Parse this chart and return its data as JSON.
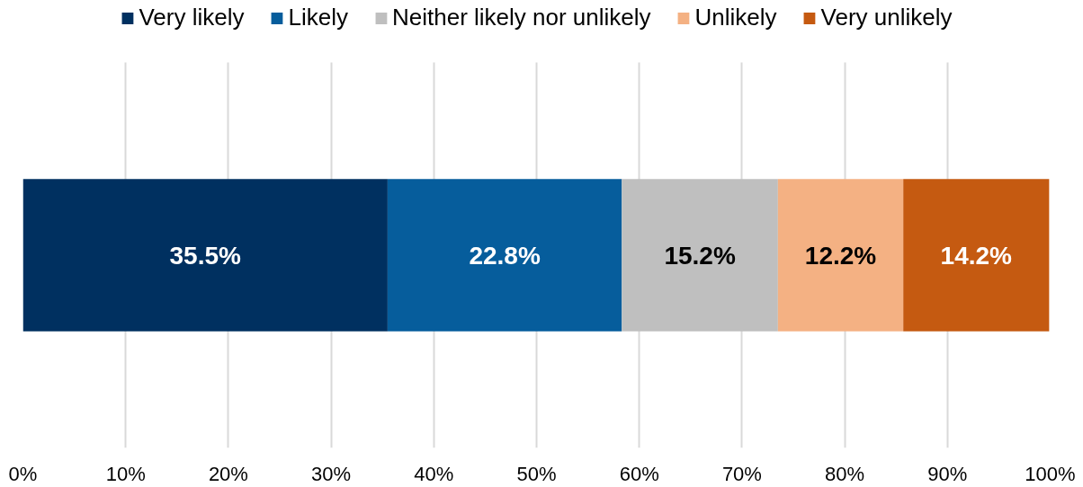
{
  "chart_data": {
    "type": "bar",
    "orientation": "horizontal",
    "stacked": true,
    "categories": [
      null
    ],
    "series": [
      {
        "name": "Very likely",
        "color": "#003060",
        "values": [
          35.5
        ],
        "value_labels": [
          "35.5%"
        ]
      },
      {
        "name": "Likely",
        "color": "#065d9c",
        "values": [
          22.8
        ],
        "value_labels": [
          "22.8%"
        ]
      },
      {
        "name": "Neither likely nor unlikely",
        "color": "#bfbfbf",
        "values": [
          15.2
        ],
        "value_labels": [
          "15.2%"
        ]
      },
      {
        "name": "Unlikely",
        "color": "#f4b183",
        "values": [
          12.2
        ],
        "value_labels": [
          "12.2%"
        ]
      },
      {
        "name": "Very unlikely",
        "color": "#c55a11",
        "values": [
          14.2
        ],
        "value_labels": [
          "14.2%"
        ]
      }
    ],
    "xlim": [
      0,
      100
    ],
    "xticks": [
      {
        "value": 0,
        "label": "0%"
      },
      {
        "value": 10,
        "label": "10%"
      },
      {
        "value": 20,
        "label": "20%"
      },
      {
        "value": 30,
        "label": "30%"
      },
      {
        "value": 40,
        "label": "40%"
      },
      {
        "value": 50,
        "label": "50%"
      },
      {
        "value": 60,
        "label": "60%"
      },
      {
        "value": 70,
        "label": "70%"
      },
      {
        "value": 80,
        "label": "80%"
      },
      {
        "value": 90,
        "label": "90%"
      },
      {
        "value": 100,
        "label": "100%"
      }
    ],
    "grid": "x",
    "legend": "top",
    "tick_labels": "x"
  }
}
